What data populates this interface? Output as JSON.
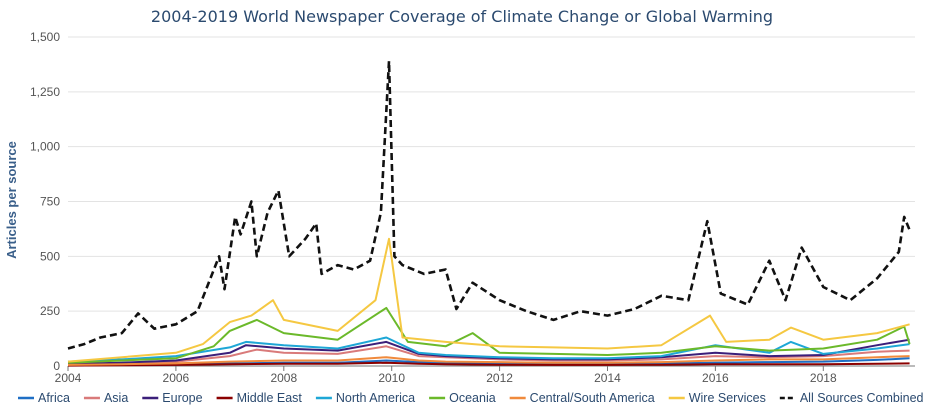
{
  "chart_data": {
    "type": "line",
    "title": "2004-2019 World Newspaper Coverage of Climate Change or Global Warming",
    "xlabel": "",
    "ylabel": "Articles per source",
    "xlim": [
      2004,
      2019.7
    ],
    "ylim": [
      0,
      1500
    ],
    "x_ticks": [
      2004,
      2006,
      2008,
      2010,
      2012,
      2014,
      2016,
      2018
    ],
    "y_ticks": [
      0,
      250,
      500,
      750,
      1000,
      1250,
      1500
    ],
    "y_tick_labels": [
      "0",
      "250",
      "500",
      "750",
      "1,000",
      "1,250",
      "1,500"
    ],
    "grid": true,
    "legend_position": "bottom",
    "series": [
      {
        "name": "Africa",
        "color": "#1f6fc5",
        "dash": false,
        "x": [
          2004,
          2005,
          2006,
          2007,
          2008,
          2009,
          2009.9,
          2010.5,
          2011,
          2012,
          2013,
          2014,
          2015,
          2016,
          2017,
          2018,
          2019,
          2019.6
        ],
        "y": [
          3,
          5,
          8,
          12,
          15,
          15,
          25,
          18,
          15,
          12,
          10,
          10,
          12,
          15,
          18,
          20,
          28,
          35
        ]
      },
      {
        "name": "Asia",
        "color": "#d97a7a",
        "dash": false,
        "x": [
          2004,
          2005,
          2006,
          2007,
          2007.5,
          2008,
          2009,
          2009.9,
          2010.5,
          2011,
          2012,
          2013,
          2014,
          2015,
          2016,
          2017,
          2018,
          2019,
          2019.6
        ],
        "y": [
          8,
          12,
          20,
          45,
          75,
          60,
          55,
          90,
          45,
          40,
          30,
          25,
          25,
          30,
          45,
          40,
          45,
          65,
          70
        ]
      },
      {
        "name": "Europe",
        "color": "#3b1f7a",
        "dash": false,
        "x": [
          2004,
          2005,
          2006,
          2007,
          2007.3,
          2008,
          2009,
          2009.9,
          2010.5,
          2011,
          2012,
          2013,
          2014,
          2015,
          2016,
          2017,
          2018,
          2019,
          2019.6
        ],
        "y": [
          10,
          15,
          25,
          60,
          95,
          80,
          70,
          110,
          55,
          45,
          35,
          30,
          30,
          40,
          60,
          45,
          50,
          95,
          120
        ]
      },
      {
        "name": "Middle East",
        "color": "#8b0000",
        "dash": false,
        "x": [
          2004,
          2005,
          2006,
          2007,
          2008,
          2009,
          2009.9,
          2010.5,
          2011,
          2012,
          2013,
          2014,
          2015,
          2016,
          2017,
          2018,
          2019,
          2019.6
        ],
        "y": [
          2,
          3,
          5,
          8,
          10,
          10,
          15,
          10,
          8,
          6,
          5,
          5,
          6,
          8,
          8,
          8,
          10,
          12
        ]
      },
      {
        "name": "North America",
        "color": "#1ea7d6",
        "dash": false,
        "x": [
          2004,
          2005,
          2006,
          2007,
          2007.3,
          2008,
          2009,
          2009.9,
          2010.5,
          2011,
          2012,
          2013,
          2014,
          2015,
          2016,
          2017,
          2017.4,
          2018,
          2019,
          2019.6
        ],
        "y": [
          20,
          30,
          45,
          85,
          110,
          95,
          80,
          130,
          60,
          50,
          40,
          35,
          35,
          45,
          95,
          60,
          110,
          55,
          80,
          100
        ]
      },
      {
        "name": "Oceania",
        "color": "#6bb92a",
        "dash": false,
        "x": [
          2004,
          2005,
          2006,
          2006.7,
          2007,
          2007.5,
          2008,
          2009,
          2009.9,
          2010.3,
          2011,
          2011.5,
          2012,
          2013,
          2014,
          2015,
          2016,
          2017,
          2018,
          2019,
          2019.5,
          2019.6
        ],
        "y": [
          15,
          25,
          35,
          90,
          160,
          210,
          150,
          120,
          265,
          110,
          90,
          150,
          60,
          55,
          50,
          60,
          90,
          70,
          80,
          120,
          180,
          100
        ]
      },
      {
        "name": "Central/South America",
        "color": "#f08a3c",
        "dash": false,
        "x": [
          2004,
          2005,
          2006,
          2007,
          2008,
          2009,
          2009.9,
          2010.5,
          2011,
          2012,
          2013,
          2014,
          2015,
          2016,
          2017,
          2018,
          2019,
          2019.6
        ],
        "y": [
          5,
          8,
          12,
          20,
          25,
          25,
          40,
          25,
          20,
          18,
          15,
          15,
          18,
          25,
          30,
          30,
          40,
          45
        ]
      },
      {
        "name": "Wire Services",
        "color": "#f5c842",
        "dash": false,
        "x": [
          2004,
          2005,
          2006,
          2006.5,
          2007,
          2007.4,
          2007.8,
          2008,
          2008.6,
          2009,
          2009.7,
          2009.95,
          2010.2,
          2011,
          2012,
          2013,
          2014,
          2015,
          2015.9,
          2016.2,
          2017,
          2017.4,
          2018,
          2019,
          2019.6
        ],
        "y": [
          20,
          40,
          60,
          100,
          200,
          230,
          300,
          210,
          180,
          160,
          300,
          580,
          130,
          110,
          90,
          85,
          80,
          95,
          230,
          110,
          120,
          175,
          120,
          150,
          190
        ]
      },
      {
        "name": "All Sources Combined",
        "color": "#111111",
        "dash": true,
        "x": [
          2004,
          2004.3,
          2004.6,
          2005,
          2005.3,
          2005.6,
          2006,
          2006.4,
          2006.8,
          2006.9,
          2007.1,
          2007.2,
          2007.4,
          2007.5,
          2007.7,
          2007.9,
          2008.1,
          2008.4,
          2008.6,
          2008.7,
          2009,
          2009.3,
          2009.6,
          2009.8,
          2009.95,
          2010.05,
          2010.2,
          2010.6,
          2011,
          2011.2,
          2011.5,
          2012,
          2012.5,
          2013,
          2013.5,
          2014,
          2014.5,
          2015,
          2015.5,
          2015.85,
          2016.1,
          2016.6,
          2017,
          2017.3,
          2017.6,
          2018,
          2018.5,
          2019,
          2019.4,
          2019.5,
          2019.6
        ],
        "y": [
          80,
          100,
          130,
          150,
          240,
          170,
          190,
          250,
          500,
          350,
          680,
          600,
          750,
          500,
          700,
          800,
          500,
          580,
          650,
          420,
          460,
          440,
          480,
          700,
          1390,
          500,
          460,
          420,
          440,
          260,
          380,
          300,
          250,
          210,
          250,
          230,
          260,
          320,
          300,
          660,
          330,
          280,
          480,
          300,
          540,
          360,
          300,
          400,
          520,
          680,
          620
        ]
      }
    ]
  }
}
